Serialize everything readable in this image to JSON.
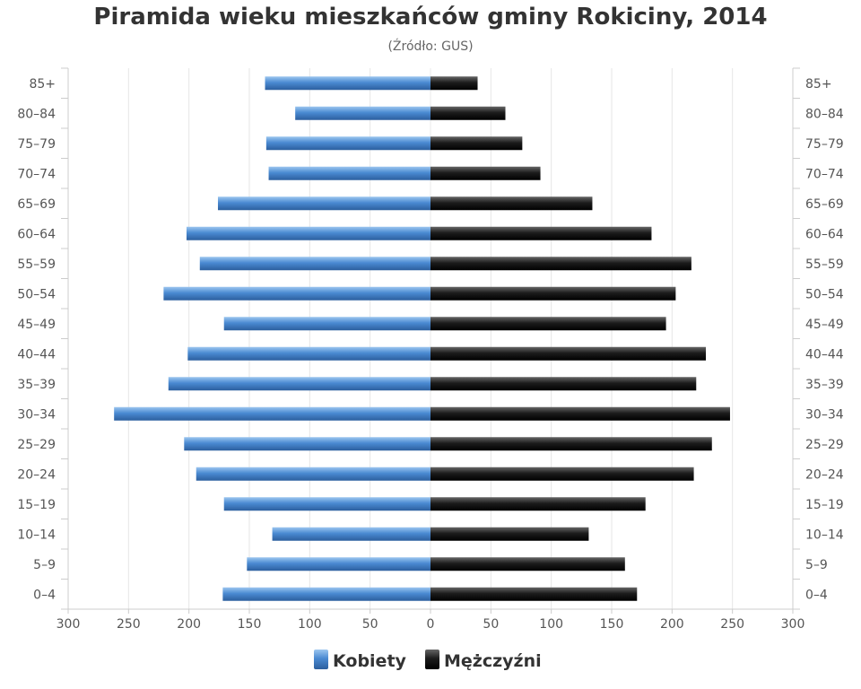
{
  "chart_data": {
    "type": "bar",
    "title": "Piramida wieku mieszkańców gminy Rokiciny, 2014",
    "subtitle": "(Źródło: GUS)",
    "categories": [
      "85+",
      "80–84",
      "75–79",
      "70–74",
      "65–69",
      "60–64",
      "55–59",
      "50–54",
      "45–49",
      "40–44",
      "35–39",
      "30–34",
      "25–29",
      "20–24",
      "15–19",
      "10–14",
      "5–9",
      "0–4"
    ],
    "series": [
      {
        "name": "Kobiety",
        "color": "#4f8fd6",
        "values": [
          137,
          112,
          136,
          134,
          176,
          202,
          191,
          221,
          171,
          201,
          217,
          262,
          204,
          194,
          171,
          131,
          152,
          172
        ]
      },
      {
        "name": "Mężczyźni",
        "color": "#1a1a1a",
        "values": [
          39,
          62,
          76,
          91,
          134,
          183,
          216,
          203,
          195,
          228,
          220,
          248,
          233,
          218,
          178,
          131,
          161,
          171
        ]
      }
    ],
    "xlim": [
      -300,
      300
    ],
    "xticks": [
      "300",
      "250",
      "200",
      "150",
      "100",
      "50",
      "0",
      "50",
      "100",
      "150",
      "200",
      "250",
      "300"
    ],
    "grid": true,
    "legend": "bottom-center"
  }
}
